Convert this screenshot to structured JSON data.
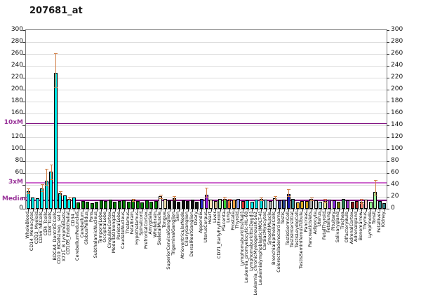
{
  "chart_data": {
    "type": "bar",
    "title": "207681_at",
    "ylabel": "",
    "xlabel": "",
    "ylim": [
      0,
      300
    ],
    "ytick_step": 20,
    "grid": true,
    "left_axis_numeric_ticks": [
      0,
      60,
      80,
      100,
      120,
      160,
      180,
      200,
      220,
      240,
      260,
      280,
      300
    ],
    "right_axis_numeric_ticks": [
      0,
      20,
      40,
      60,
      80,
      100,
      120,
      140,
      160,
      180,
      200,
      220,
      240,
      260,
      280,
      300
    ],
    "ref_lines": [
      {
        "label": "10xM",
        "value": 143,
        "color": "#770077",
        "thickness": 1
      },
      {
        "label": "3xM",
        "value": 43,
        "color": "#cc66cc",
        "thickness": 2
      },
      {
        "label": "Median",
        "value": 14.3,
        "color": "#800080",
        "thickness": 2
      }
    ],
    "error_bar_color": "#d2824b",
    "categories": [
      "WholeBlood",
      "CD14_Monocytes",
      "CD33_Myeloid",
      "CD56_NKCells",
      "CD4_Tcells",
      "CD8_Tcells",
      "BDCA4_DentriticCells",
      "CD19_BCells(neg._sel.)",
      "X721_B_lymphoblasts",
      "CD105_Endothelial",
      "CD34_",
      "CerebellumPeduncles",
      "Cerebellum",
      "GlobusPallidus",
      "Pons",
      "SubthalamicNucleus",
      "TemporalLobe",
      "OccipitalLobe",
      "CingulateCortex",
      "MedullaOblongata",
      "ParietalLobe",
      "CaudateNucleus",
      "Thalamus",
      "Fetalbrain",
      "Hypothalamus",
      "Spinalcord",
      "PrefrontalCortex",
      "Amygdala",
      "Wholebrain",
      "SkeletalMuscle",
      "Tongue",
      "SuperiorCervicalGanglion",
      "TrigeminalGanglion",
      "Skin",
      "AtrioventricularNode",
      "CiliaryGanglion",
      "DorsalRootGanglion",
      "Ovary",
      "Appendix",
      "UterusCorpus",
      "Heart",
      "Liver",
      "CD71_EarlyErythroid",
      "Placenta",
      "Lung",
      "Prostate",
      "Thyroid",
      "Lymphomaburkitts(Raji)",
      "Leukemia_promyelocytic-HL-60",
      "Lymphomaburkitts(Daudi)",
      "Leukemia_chronicMyelogenousK-562",
      "Leukemialymphoblastic(MOLT-4)",
      "CardiacMyocytes",
      "SmoothMuscle",
      "BronchialEpithelialCells",
      "Colorectaladenocarcinoma",
      "Testis",
      "TestisGermCell",
      "TestisInterstitial",
      "TestisLeydigCell",
      "TestisSeminiferousTubule",
      "Pancreas",
      "PancreaticIslets",
      "Adipocyte",
      "Uterus",
      "FetalThyroid",
      "Fetallung",
      "Pituitary",
      "Salivarygland",
      "Trachea",
      "OlfactoryBulb",
      "AdrenalCortex",
      "Adrenalgland",
      "Bonemarrow",
      "Thymus",
      "Lymphnode",
      "Tonsil",
      "Fetalliver",
      "Kidney"
    ],
    "bars": [
      {
        "label": "WholeBlood",
        "value": 30,
        "color": "#00e8e8",
        "err_lo": 26,
        "err_hi": 34
      },
      {
        "label": "CD14_Monocytes",
        "value": 19,
        "color": "#00e8e8"
      },
      {
        "label": "CD33_Myeloid",
        "value": 18,
        "color": "#00e8e8"
      },
      {
        "label": "CD56_NKCells",
        "value": 34,
        "color": "#00e8e8",
        "err_lo": 30,
        "err_hi": 41
      },
      {
        "label": "CD4_Tcells",
        "value": 47,
        "color": "#00e8e8",
        "err_lo": 40,
        "err_hi": 67
      },
      {
        "label": "CD8_Tcells",
        "value": 62,
        "color": "#00e8e8",
        "err_lo": 50,
        "err_hi": 74
      },
      {
        "label": "BDCA4_DentriticCells",
        "value": 228,
        "color": "#00e8e8",
        "err_lo": 205,
        "err_hi": 261
      },
      {
        "label": "CD19_BCells(neg._sel.)",
        "value": 26,
        "color": "#00e8e8",
        "err_lo": 23,
        "err_hi": 29
      },
      {
        "label": "X721_B_lymphoblasts",
        "value": 22,
        "color": "#00e8e8"
      },
      {
        "label": "CD105_Endothelial",
        "value": 17,
        "color": "#00e8e8",
        "err_lo": 15,
        "err_hi": 20
      },
      {
        "label": "CD34_",
        "value": 19,
        "color": "#00e8e8"
      },
      {
        "label": "CerebellumPeduncles",
        "value": 11,
        "color": "#007a00"
      },
      {
        "label": "Cerebellum",
        "value": 13,
        "color": "#007a00"
      },
      {
        "label": "GlobusPallidus",
        "value": 12,
        "color": "#007a00"
      },
      {
        "label": "Pons",
        "value": 10,
        "color": "#007a00"
      },
      {
        "label": "SubthalamicNucleus",
        "value": 12,
        "color": "#007a00"
      },
      {
        "label": "TemporalLobe",
        "value": 14,
        "color": "#007a00"
      },
      {
        "label": "OccipitalLobe",
        "value": 13,
        "color": "#007a00"
      },
      {
        "label": "CingulateCortex",
        "value": 15,
        "color": "#007a00"
      },
      {
        "label": "MedullaOblongata",
        "value": 12,
        "color": "#007a00"
      },
      {
        "label": "ParietalLobe",
        "value": 13,
        "color": "#007a00"
      },
      {
        "label": "CaudateNucleus",
        "value": 14,
        "color": "#007a00"
      },
      {
        "label": "Thalamus",
        "value": 12,
        "color": "#007a00"
      },
      {
        "label": "Fetalbrain",
        "value": 15,
        "color": "#007a00",
        "err_lo": 13,
        "err_hi": 17
      },
      {
        "label": "Hypothalamus",
        "value": 13,
        "color": "#007a00"
      },
      {
        "label": "Spinalcord",
        "value": 11,
        "color": "#007a00"
      },
      {
        "label": "PrefrontalCortex",
        "value": 14,
        "color": "#007a00"
      },
      {
        "label": "Amygdala",
        "value": 12,
        "color": "#007a00"
      },
      {
        "label": "Wholebrain",
        "value": 13,
        "color": "#007a00"
      },
      {
        "label": "SkeletalMuscle",
        "value": 21,
        "color": "#ffffff",
        "err_lo": 18,
        "err_hi": 24
      },
      {
        "label": "Tongue",
        "value": 16,
        "color": "#eddcb0"
      },
      {
        "label": "SuperiorCervicalGanglion",
        "value": 14,
        "color": "#101010"
      },
      {
        "label": "TrigeminalGanglion",
        "value": 18,
        "color": "#101010",
        "err_lo": 15,
        "err_hi": 21
      },
      {
        "label": "Skin",
        "value": 12,
        "color": "#101010"
      },
      {
        "label": "AtrioventricularNode",
        "value": 14,
        "color": "#101010"
      },
      {
        "label": "CiliaryGanglion",
        "value": 13,
        "color": "#101010"
      },
      {
        "label": "DorsalRootGanglion",
        "value": 15,
        "color": "#101010"
      },
      {
        "label": "Ovary",
        "value": 12,
        "color": "#101010"
      },
      {
        "label": "Appendix",
        "value": 16,
        "color": "#2a2ac8"
      },
      {
        "label": "UterusCorpus",
        "value": 24,
        "color": "#a020f0",
        "err_lo": 20,
        "err_hi": 35
      },
      {
        "label": "Heart",
        "value": 15,
        "color": "#f5deb3"
      },
      {
        "label": "Liver",
        "value": 13,
        "color": "#d2b48c"
      },
      {
        "label": "CD71_EarlyErythroid",
        "value": 16,
        "color": "#98fb98"
      },
      {
        "label": "Placenta",
        "value": 17,
        "color": "#33cc33",
        "err_lo": 15,
        "err_hi": 20
      },
      {
        "label": "Lung",
        "value": 14,
        "color": "#e8642c",
        "err_lo": 12,
        "err_hi": 17
      },
      {
        "label": "Prostate",
        "value": 15,
        "color": "#ffa040"
      },
      {
        "label": "Thyroid",
        "value": 16,
        "color": "#8899ee"
      },
      {
        "label": "Lymphomaburkitts(Raji)",
        "value": 13,
        "color": "#d22b2b"
      },
      {
        "label": "Leukemia_promyelocytic-HL-60",
        "value": 14,
        "color": "#00e8e8"
      },
      {
        "label": "Lymphomaburkitts(Daudi)",
        "value": 12,
        "color": "#00e8e8"
      },
      {
        "label": "Leukemia_chronicMyelogenousK-562",
        "value": 15,
        "color": "#00e8e8"
      },
      {
        "label": "Leukemialymphoblastic(MOLT-4)",
        "value": 16,
        "color": "#00e8e8",
        "err_lo": 14,
        "err_hi": 19
      },
      {
        "label": "CardiacMyocytes",
        "value": 15,
        "color": "#70dbdb"
      },
      {
        "label": "SmoothMuscle",
        "value": 13,
        "color": "#b8b8b8"
      },
      {
        "label": "BronchialEpithelialCells",
        "value": 18,
        "color": "#dff5f5",
        "err_lo": 15,
        "err_hi": 21
      },
      {
        "label": "Colorectaladenocarcinoma",
        "value": 14,
        "color": "#4a4ab0"
      },
      {
        "label": "Testis",
        "value": 15,
        "color": "#27408b"
      },
      {
        "label": "TestisGermCell",
        "value": 25,
        "color": "#1c1cb0",
        "err_lo": 21,
        "err_hi": 33
      },
      {
        "label": "TestisInterstitial",
        "value": 16,
        "color": "#2f8b8b"
      },
      {
        "label": "TestisLeydigCell",
        "value": 11,
        "color": "#daa520"
      },
      {
        "label": "TestisSeminiferousTubule",
        "value": 13,
        "color": "#daa520"
      },
      {
        "label": "Pancreas",
        "value": 13,
        "color": "#c89616"
      },
      {
        "label": "PancreaticIslets",
        "value": 16,
        "color": "#a8a8a8",
        "err_lo": 14,
        "err_hi": 19
      },
      {
        "label": "Adipocyte",
        "value": 14,
        "color": "#c4c4c4"
      },
      {
        "label": "Uterus",
        "value": 12,
        "color": "#a0e8e8"
      },
      {
        "label": "FetalThyroid",
        "value": 13,
        "color": "#e8e89a",
        "err_lo": 11,
        "err_hi": 17
      },
      {
        "label": "Fetallung",
        "value": 15,
        "color": "#9932cc"
      },
      {
        "label": "Pituitary",
        "value": 14,
        "color": "#8a2be2"
      },
      {
        "label": "Salivarygland",
        "value": 12,
        "color": "#808000"
      },
      {
        "label": "Trachea",
        "value": 16,
        "color": "#2e8b57"
      },
      {
        "label": "OlfactoryBulb",
        "value": 14,
        "color": "#9932cc"
      },
      {
        "label": "AdrenalCortex",
        "value": 12,
        "color": "#8b1a1a"
      },
      {
        "label": "Adrenalgland",
        "value": 13,
        "color": "#a52a2a"
      },
      {
        "label": "Bonemarrow",
        "value": 12,
        "color": "#fa8072",
        "err_lo": 10,
        "err_hi": 16
      },
      {
        "label": "Thymus",
        "value": 15,
        "color": "#ffb6c1"
      },
      {
        "label": "Lymphnode",
        "value": 12,
        "color": "#90ee90"
      },
      {
        "label": "Tonsil",
        "value": 28,
        "color": "#98e898",
        "err_lo": 24,
        "err_hi": 48
      },
      {
        "label": "Fetalliver",
        "value": 13,
        "color": "#2e8b8b"
      },
      {
        "label": "Kidney",
        "value": 10,
        "color": "#2f7f7f"
      }
    ]
  }
}
